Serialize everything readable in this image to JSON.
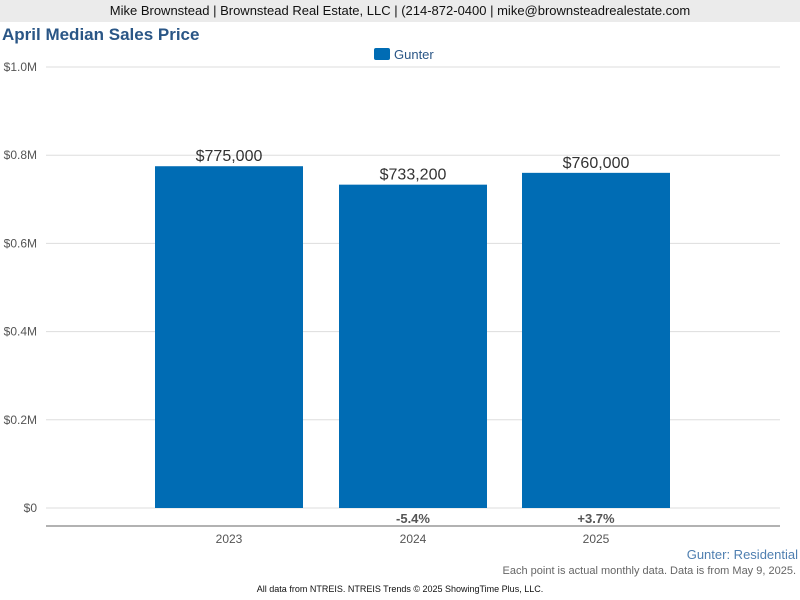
{
  "banner": "Mike Brownstead | Brownstead Real Estate, LLC | (214-872-0400 | mike@brownsteadrealestate.com",
  "colors": {
    "bar": "#006cb4",
    "title": "#2a5686",
    "grid": "#dddddd"
  },
  "chart_data": {
    "type": "bar",
    "title": "April Median Sales Price",
    "categories": [
      "2023",
      "2024",
      "2025"
    ],
    "series": [
      {
        "name": "Gunter",
        "values": [
          775000,
          733200,
          760000
        ]
      }
    ],
    "data_labels": [
      "$775,000",
      "$733,200",
      "$760,000"
    ],
    "change_labels": [
      "",
      "-5.4%",
      "+3.7%"
    ],
    "ylim": [
      0,
      1000000
    ],
    "yticks": [
      0,
      200000,
      400000,
      600000,
      800000,
      1000000
    ],
    "ytick_labels": [
      "$0",
      "$0.2M",
      "$0.4M",
      "$0.6M",
      "$0.8M",
      "$1.0M"
    ],
    "grid": true,
    "legend": "top-center"
  },
  "footer": {
    "series_label": "Gunter: Residential",
    "note": "Each point is actual monthly data. Data is from May 9, 2025.",
    "credit": "All data from NTREIS. NTREIS Trends © 2025 ShowingTime Plus, LLC."
  }
}
